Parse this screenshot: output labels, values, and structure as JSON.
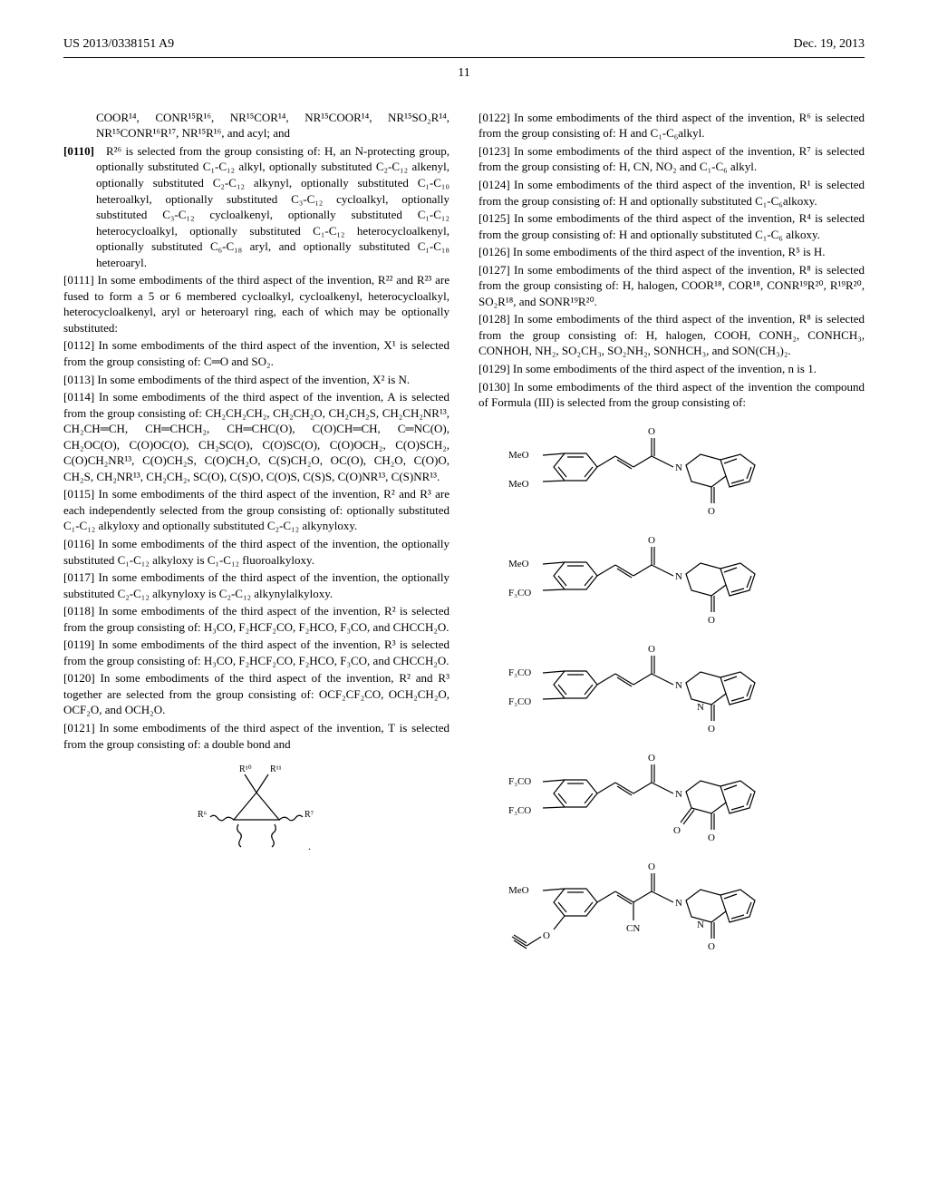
{
  "header": {
    "doc_number": "US 2013/0338151 A9",
    "date": "Dec. 19, 2013"
  },
  "page_number": "11",
  "left_column": {
    "p0109_cont": "COOR¹⁴, CONR¹⁵R¹⁶, NR¹⁵COR¹⁴, NR¹⁵COOR¹⁴, NR¹⁵SO₂R¹⁴, NR¹⁵CONR¹⁶R¹⁷, NR¹⁵R¹⁶, and acyl; and",
    "p0110_num": "[0110]",
    "p0110": "R²⁶ is selected from the group consisting of: H, an N-protecting group, optionally substituted C₁-C₁₂ alkyl, optionally substituted C₂-C₁₂ alkenyl, optionally substituted C₂-C₁₂ alkynyl, optionally substituted C₁-C₁₀ heteroalkyl, optionally substituted C₃-C₁₂ cycloalkyl, optionally substituted C₃-C₁₂ cycloalkenyl, optionally substituted C₁-C₁₂ heterocycloalkyl, optionally substituted C₁-C₁₂ heterocycloalkenyl, optionally substituted C₆-C₁₈ aryl, and optionally substituted C₁-C₁₈ heteroaryl.",
    "p0111": "[0111]    In some embodiments of the third aspect of the invention, R²² and R²³ are fused to form a 5 or 6 membered cycloalkyl, cycloalkenyl, heterocycloalkyl, heterocycloalkenyl, aryl or heteroaryl ring, each of which may be optionally substituted:",
    "p0112": "[0112]    In some embodiments of the third aspect of the invention, X¹ is selected from the group consisting of: C═O and SO₂.",
    "p0113": "[0113]    In some embodiments of the third aspect of the invention, X² is N.",
    "p0114": "[0114]    In some embodiments of the third aspect of the invention, A is selected from the group consisting of: CH₂CH₂CH₂, CH₂CH₂O, CH₂CH₂S, CH₂CH₂NR¹³, CH₂CH═CH, CH═CHCH₂, CH═CHC(O), C(O)CH═CH, C═NC(O), CH₂OC(O), C(O)OC(O), CH₂SC(O), C(O)SC(O), C(O)OCH₂, C(O)SCH₂, C(O)CH₂NR¹³, C(O)CH₂S, C(O)CH₂O, C(S)CH₂O, OC(O), CH₂O, C(O)O, CH₂S, CH₂NR¹³, CH₂CH₂, SC(O), C(S)O, C(O)S, C(S)S, C(O)NR¹³, C(S)NR¹³.",
    "p0115": "[0115]    In some embodiments of the third aspect of the invention, R² and R³ are each independently selected from the group consisting of: optionally substituted C₁-C₁₂ alkyloxy and optionally substituted C₂-C₁₂ alkynyloxy.",
    "p0116": "[0116]    In some embodiments of the third aspect of the invention, the optionally substituted C₁-C₁₂ alkyloxy is C₁-C₁₂ fluoroalkyloxy.",
    "p0117": "[0117]    In some embodiments of the third aspect of the invention, the optionally substituted C₂-C₁₂ alkynyloxy is C₂-C₁₂ alkynylalkyloxy.",
    "p0118": "[0118]    In some embodiments of the third aspect of the invention, R² is selected from the group consisting of: H₃CO, F₂HCF₂CO, F₂HCO, F₃CO, and CHCCH₂O.",
    "p0119": "[0119]    In some embodiments of the third aspect of the invention, R³ is selected from the group consisting of: H₃CO, F₂HCF₂CO, F₂HCO, F₃CO, and CHCCH₂O.",
    "p0120": "[0120]    In some embodiments of the third aspect of the invention, R² and R³ together are selected from the group consisting of: OCF₂CF₂CO, OCH₂CH₂O, OCF₂O, and OCH₂O.",
    "p0121": "[0121]    In some embodiments of the third aspect of the invention, T is selected from the group consisting of: a double bond and",
    "diagram_small_labels": {
      "r10": "R¹⁰",
      "r11": "R¹¹",
      "r6": "R⁶",
      "r7": "R⁷"
    }
  },
  "right_column": {
    "p0122": "[0122]    In some embodiments of the third aspect of the invention, R⁶ is selected from the group consisting of: H and C₁-C₆alkyl.",
    "p0123": "[0123]    In some embodiments of the third aspect of the invention, R⁷ is selected from the group consisting of: H, CN, NO₂ and C₁-C₆ alkyl.",
    "p0124": "[0124]    In some embodiments of the third aspect of the invention, R¹ is selected from the group consisting of: H and optionally substituted C₁-C₆alkoxy.",
    "p0125": "[0125]    In some embodiments of the third aspect of the invention, R⁴ is selected from the group consisting of: H and optionally substituted C₁-C₆ alkoxy.",
    "p0126": "[0126]    In some embodiments of the third aspect of the invention, R⁵ is H.",
    "p0127": "[0127]    In some embodiments of the third aspect of the invention, R⁸ is selected from the group consisting of: H, halogen, COOR¹⁸, COR¹⁸, CONR¹⁹R²⁰, R¹⁹R²⁰, SO₂R¹⁸, and SONR¹⁹R²⁰.",
    "p0128": "[0128]    In some embodiments of the third aspect of the invention, R⁸ is selected from the group consisting of: H, halogen, COOH, CONH₂, CONHCH₃, CONHOH, NH₂, SO₂CH₃, SO₂NH₂, SONHCH₃, and SON(CH₃)₂.",
    "p0129": "[0129]    In some embodiments of the third aspect of the invention, n is 1.",
    "p0130": "[0130]    In some embodiments of the third aspect of the invention the compound of Formula (III) is selected from the group consisting of:",
    "structures": [
      {
        "left1": "MeO",
        "left2": "MeO",
        "hasCN": false,
        "hasN": false,
        "leftPropargyl": false
      },
      {
        "left1": "MeO",
        "left2": "F₃CO",
        "hasCN": false,
        "hasN": false,
        "leftPropargyl": false
      },
      {
        "left1": "F₃CO",
        "left2": "F₃CO",
        "hasCN": false,
        "hasN": true,
        "leftPropargyl": false
      },
      {
        "left1": "F₃CO",
        "left2": "F₃CO",
        "hasCN": false,
        "hasN": false,
        "leftPropargyl": false,
        "extraO": true
      },
      {
        "left1": "MeO",
        "left2": "",
        "hasCN": true,
        "hasN": true,
        "leftPropargyl": true
      }
    ]
  }
}
